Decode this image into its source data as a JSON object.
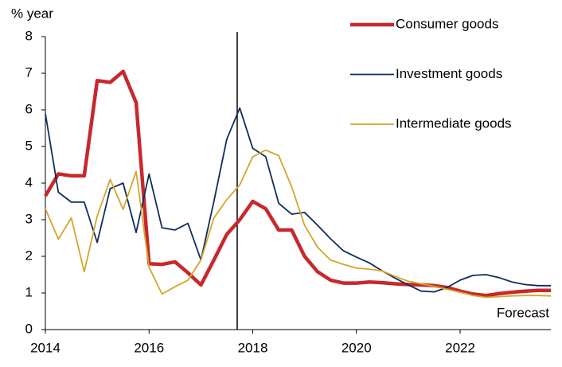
{
  "chart_data": {
    "type": "line",
    "y_label": "% year",
    "annotation": "Forecast",
    "forecast_line": 2017.7,
    "x": [
      2014,
      2014.25,
      2014.5,
      2014.75,
      2015,
      2015.25,
      2015.5,
      2015.75,
      2016,
      2016.25,
      2016.5,
      2016.75,
      2017,
      2017.25,
      2017.5,
      2017.75,
      2018,
      2018.25,
      2018.5,
      2018.75,
      2019,
      2019.25,
      2019.5,
      2019.75,
      2020,
      2020.25,
      2020.5,
      2020.75,
      2021,
      2021.25,
      2021.5,
      2021.75,
      2022,
      2022.25,
      2022.5,
      2022.75,
      2023,
      2023.25,
      2023.5,
      2023.75
    ],
    "series": [
      {
        "name": "Consumer goods",
        "color": "#c8282d",
        "width": 4.5,
        "values": [
          3.65,
          4.25,
          4.2,
          4.2,
          6.8,
          6.75,
          7.05,
          6.2,
          1.8,
          1.78,
          1.85,
          1.55,
          1.22,
          1.9,
          2.6,
          3.0,
          3.5,
          3.3,
          2.72,
          2.72,
          2.0,
          1.58,
          1.35,
          1.27,
          1.27,
          1.3,
          1.28,
          1.25,
          1.23,
          1.22,
          1.2,
          1.15,
          1.05,
          0.97,
          0.93,
          0.98,
          1.02,
          1.05,
          1.07,
          1.07
        ]
      },
      {
        "name": "Investment goods",
        "color": "#0e2e5c",
        "width": 1.8,
        "values": [
          5.9,
          3.75,
          3.48,
          3.48,
          2.38,
          3.85,
          4.0,
          2.65,
          4.25,
          2.78,
          2.72,
          2.9,
          1.9,
          3.5,
          5.2,
          6.05,
          4.95,
          4.72,
          3.45,
          3.15,
          3.2,
          2.85,
          2.48,
          2.15,
          1.98,
          1.82,
          1.6,
          1.4,
          1.22,
          1.05,
          1.03,
          1.15,
          1.35,
          1.48,
          1.5,
          1.42,
          1.3,
          1.23,
          1.2,
          1.2
        ]
      },
      {
        "name": "Intermediate goods",
        "color": "#d4a62a",
        "width": 1.8,
        "values": [
          3.3,
          2.47,
          3.05,
          1.58,
          3.1,
          4.1,
          3.28,
          4.32,
          1.7,
          0.97,
          1.17,
          1.35,
          1.9,
          3.05,
          3.55,
          3.95,
          4.72,
          4.9,
          4.75,
          3.9,
          2.85,
          2.25,
          1.9,
          1.78,
          1.68,
          1.65,
          1.6,
          1.45,
          1.32,
          1.25,
          1.18,
          1.1,
          1.02,
          0.93,
          0.88,
          0.9,
          0.92,
          0.93,
          0.93,
          0.92
        ]
      }
    ],
    "xlim": [
      2014,
      2023.75
    ],
    "xticks": [
      2014,
      2016,
      2018,
      2020,
      2022
    ],
    "ylim": [
      0,
      8
    ],
    "yticks": [
      0,
      1,
      2,
      3,
      4,
      5,
      6,
      7,
      8
    ],
    "grid": false,
    "legend": "upper right"
  }
}
